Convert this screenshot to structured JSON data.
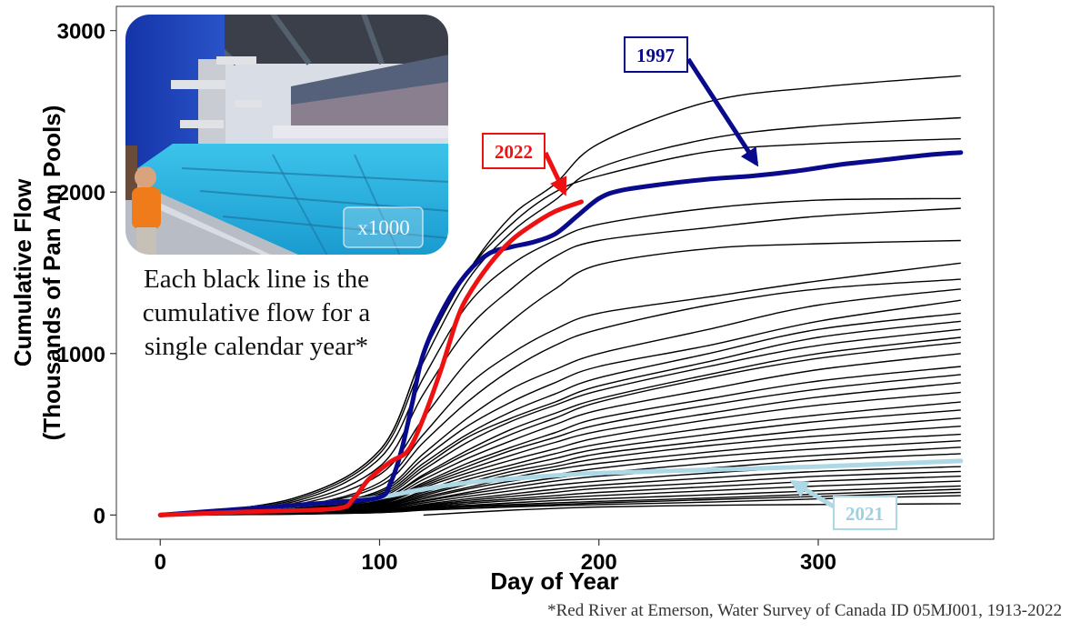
{
  "chart_data": {
    "type": "line",
    "xlabel": "Day of Year",
    "ylabel": [
      "Cumulative Flow",
      "(Thousands of Pan Am Pools)"
    ],
    "xlim": [
      -20,
      380
    ],
    "ylim": [
      -150,
      3150
    ],
    "xticks": [
      0,
      100,
      200,
      300
    ],
    "yticks": [
      0,
      1000,
      2000,
      3000
    ],
    "grid": false,
    "annotation": [
      "Each black line is the",
      "cumulative flow for a",
      "single calendar year*"
    ],
    "photo_label": "x1000",
    "footnote": "*Red River at Emerson, Water Survey of Canada ID 05MJ001, 1913-2022",
    "colors": {
      "background_years": "#000000",
      "y1997": "#0a0a8c",
      "y2022": "#ee1111",
      "y2021": "#add8e6"
    },
    "highlighted": [
      {
        "name": "1997",
        "color": "#0a0a8c",
        "x": [
          0,
          40,
          80,
          100,
          105,
          110,
          115,
          120,
          130,
          140,
          150,
          160,
          170,
          180,
          190,
          200,
          210,
          230,
          250,
          270,
          290,
          310,
          330,
          350,
          365
        ],
        "y": [
          0,
          40,
          80,
          110,
          200,
          400,
          700,
          1000,
          1300,
          1500,
          1620,
          1660,
          1690,
          1740,
          1850,
          1960,
          2010,
          2050,
          2080,
          2100,
          2130,
          2170,
          2200,
          2230,
          2245
        ]
      },
      {
        "name": "2022",
        "color": "#ee1111",
        "x": [
          0,
          40,
          80,
          88,
          95,
          105,
          113,
          120,
          128,
          135,
          140,
          150,
          160,
          170,
          180,
          192
        ],
        "y": [
          0,
          20,
          40,
          100,
          220,
          330,
          400,
          600,
          900,
          1200,
          1350,
          1550,
          1700,
          1800,
          1880,
          1940
        ]
      },
      {
        "name": "2021",
        "color": "#add8e6",
        "x": [
          0,
          40,
          80,
          100,
          120,
          140,
          160,
          180,
          200,
          250,
          300,
          365
        ],
        "y": [
          0,
          40,
          80,
          110,
          160,
          200,
          225,
          245,
          260,
          280,
          300,
          335
        ]
      }
    ],
    "background_years": [
      {
        "x": [
          0,
          60,
          100,
          120,
          140,
          160,
          180,
          200,
          250,
          300,
          365
        ],
        "y": [
          0,
          100,
          400,
          1000,
          1500,
          1800,
          2000,
          2100,
          2250,
          2300,
          2330
        ]
      },
      {
        "x": [
          0,
          60,
          100,
          120,
          140,
          160,
          180,
          200,
          250,
          300,
          365
        ],
        "y": [
          0,
          100,
          400,
          1000,
          1500,
          1850,
          2050,
          2300,
          2560,
          2650,
          2720
        ]
      },
      {
        "x": [
          0,
          60,
          100,
          120,
          140,
          160,
          180,
          200,
          250,
          300,
          365
        ],
        "y": [
          0,
          90,
          380,
          950,
          1450,
          1750,
          1950,
          2150,
          2330,
          2410,
          2460
        ]
      },
      {
        "x": [
          0,
          60,
          100,
          120,
          140,
          160,
          180,
          200,
          250,
          300,
          365
        ],
        "y": [
          0,
          80,
          350,
          850,
          1300,
          1550,
          1700,
          1800,
          1900,
          1950,
          1960
        ]
      },
      {
        "x": [
          0,
          60,
          100,
          120,
          140,
          160,
          180,
          200,
          250,
          300,
          365
        ],
        "y": [
          0,
          70,
          300,
          750,
          1150,
          1400,
          1600,
          1700,
          1780,
          1850,
          1900
        ]
      },
      {
        "x": [
          0,
          60,
          100,
          120,
          140,
          160,
          180,
          200,
          250,
          300,
          365
        ],
        "y": [
          0,
          60,
          250,
          600,
          950,
          1200,
          1400,
          1550,
          1650,
          1680,
          1700
        ]
      },
      {
        "x": [
          0,
          60,
          100,
          120,
          140,
          160,
          180,
          200,
          250,
          300,
          365
        ],
        "y": [
          0,
          50,
          200,
          500,
          800,
          1000,
          1150,
          1250,
          1350,
          1450,
          1560
        ]
      },
      {
        "x": [
          0,
          60,
          100,
          120,
          140,
          160,
          180,
          200,
          250,
          300,
          365
        ],
        "y": [
          0,
          50,
          180,
          450,
          700,
          900,
          1050,
          1150,
          1300,
          1400,
          1460
        ]
      },
      {
        "x": [
          0,
          60,
          100,
          120,
          140,
          160,
          180,
          200,
          250,
          300,
          365
        ],
        "y": [
          0,
          40,
          150,
          380,
          600,
          780,
          900,
          1000,
          1150,
          1300,
          1400
        ]
      },
      {
        "x": [
          0,
          60,
          100,
          120,
          140,
          160,
          180,
          200,
          250,
          300,
          365
        ],
        "y": [
          0,
          40,
          140,
          350,
          550,
          700,
          820,
          920,
          1050,
          1200,
          1330
        ]
      },
      {
        "x": [
          0,
          60,
          100,
          120,
          140,
          160,
          180,
          200,
          250,
          300,
          365
        ],
        "y": [
          0,
          35,
          130,
          320,
          500,
          640,
          750,
          850,
          1000,
          1150,
          1250
        ]
      },
      {
        "x": [
          0,
          60,
          100,
          120,
          140,
          160,
          180,
          200,
          250,
          300,
          365
        ],
        "y": [
          0,
          35,
          120,
          300,
          480,
          600,
          700,
          800,
          950,
          1100,
          1200
        ]
      },
      {
        "x": [
          0,
          60,
          100,
          120,
          140,
          160,
          180,
          200,
          250,
          300,
          365
        ],
        "y": [
          0,
          30,
          110,
          280,
          450,
          580,
          680,
          770,
          920,
          1050,
          1150
        ]
      },
      {
        "x": [
          0,
          60,
          100,
          120,
          140,
          160,
          180,
          200,
          250,
          300,
          365
        ],
        "y": [
          0,
          30,
          100,
          250,
          400,
          530,
          630,
          720,
          870,
          1000,
          1100
        ]
      },
      {
        "x": [
          0,
          60,
          100,
          120,
          140,
          160,
          180,
          200,
          250,
          300,
          365
        ],
        "y": [
          0,
          30,
          100,
          240,
          380,
          500,
          600,
          700,
          850,
          970,
          1070
        ]
      },
      {
        "x": [
          0,
          60,
          100,
          120,
          140,
          160,
          180,
          200,
          250,
          300,
          365
        ],
        "y": [
          0,
          25,
          90,
          220,
          350,
          460,
          560,
          650,
          780,
          900,
          1000
        ]
      },
      {
        "x": [
          0,
          60,
          100,
          120,
          140,
          160,
          180,
          200,
          250,
          300,
          365
        ],
        "y": [
          0,
          25,
          85,
          200,
          320,
          420,
          510,
          600,
          720,
          830,
          920
        ]
      },
      {
        "x": [
          0,
          60,
          100,
          120,
          140,
          160,
          180,
          200,
          250,
          300,
          365
        ],
        "y": [
          0,
          25,
          80,
          190,
          300,
          400,
          480,
          560,
          680,
          780,
          870
        ]
      },
      {
        "x": [
          0,
          60,
          100,
          120,
          140,
          160,
          180,
          200,
          250,
          300,
          365
        ],
        "y": [
          0,
          20,
          75,
          180,
          280,
          370,
          450,
          520,
          630,
          730,
          820
        ]
      },
      {
        "x": [
          0,
          60,
          100,
          120,
          140,
          160,
          180,
          200,
          250,
          300,
          365
        ],
        "y": [
          0,
          20,
          70,
          170,
          260,
          340,
          410,
          480,
          590,
          680,
          760
        ]
      },
      {
        "x": [
          0,
          60,
          100,
          120,
          140,
          160,
          180,
          200,
          250,
          300,
          365
        ],
        "y": [
          0,
          20,
          65,
          150,
          240,
          310,
          380,
          440,
          540,
          620,
          700
        ]
      },
      {
        "x": [
          0,
          60,
          100,
          120,
          140,
          160,
          180,
          200,
          250,
          300,
          365
        ],
        "y": [
          0,
          18,
          60,
          140,
          220,
          290,
          350,
          410,
          500,
          580,
          650
        ]
      },
      {
        "x": [
          0,
          60,
          100,
          120,
          140,
          160,
          180,
          200,
          250,
          300,
          365
        ],
        "y": [
          0,
          18,
          55,
          130,
          200,
          270,
          320,
          380,
          460,
          530,
          600
        ]
      },
      {
        "x": [
          0,
          60,
          100,
          120,
          140,
          160,
          180,
          200,
          250,
          300,
          365
        ],
        "y": [
          0,
          15,
          50,
          120,
          190,
          250,
          300,
          350,
          430,
          490,
          550
        ]
      },
      {
        "x": [
          0,
          60,
          100,
          120,
          140,
          160,
          180,
          200,
          250,
          300,
          365
        ],
        "y": [
          0,
          15,
          50,
          110,
          170,
          230,
          280,
          320,
          390,
          450,
          500
        ]
      },
      {
        "x": [
          0,
          60,
          100,
          120,
          140,
          160,
          180,
          200,
          250,
          300,
          365
        ],
        "y": [
          0,
          15,
          45,
          100,
          160,
          210,
          250,
          290,
          360,
          410,
          460
        ]
      },
      {
        "x": [
          0,
          60,
          100,
          120,
          140,
          160,
          180,
          200,
          250,
          300,
          365
        ],
        "y": [
          0,
          12,
          40,
          90,
          140,
          190,
          230,
          260,
          320,
          370,
          420
        ]
      },
      {
        "x": [
          0,
          60,
          100,
          120,
          140,
          160,
          180,
          200,
          250,
          300,
          365
        ],
        "y": [
          0,
          12,
          40,
          85,
          130,
          170,
          210,
          240,
          290,
          340,
          380
        ]
      },
      {
        "x": [
          0,
          60,
          100,
          120,
          140,
          160,
          180,
          200,
          250,
          300,
          365
        ],
        "y": [
          0,
          10,
          35,
          75,
          115,
          150,
          185,
          210,
          260,
          300,
          340
        ]
      },
      {
        "x": [
          0,
          60,
          100,
          120,
          140,
          160,
          180,
          200,
          250,
          300,
          365
        ],
        "y": [
          0,
          10,
          30,
          65,
          100,
          130,
          160,
          185,
          230,
          270,
          300
        ]
      },
      {
        "x": [
          0,
          60,
          100,
          120,
          140,
          160,
          180,
          200,
          250,
          300,
          365
        ],
        "y": [
          0,
          10,
          30,
          60,
          90,
          115,
          140,
          165,
          200,
          240,
          270
        ]
      },
      {
        "x": [
          0,
          60,
          100,
          120,
          140,
          160,
          180,
          200,
          250,
          300,
          365
        ],
        "y": [
          0,
          8,
          25,
          55,
          80,
          100,
          120,
          140,
          175,
          210,
          240
        ]
      },
      {
        "x": [
          0,
          60,
          100,
          120,
          140,
          160,
          180,
          200,
          250,
          300,
          365
        ],
        "y": [
          0,
          8,
          25,
          50,
          70,
          90,
          105,
          120,
          150,
          180,
          210
        ]
      },
      {
        "x": [
          0,
          60,
          100,
          120,
          140,
          160,
          180,
          200,
          250,
          300,
          365
        ],
        "y": [
          0,
          8,
          20,
          45,
          60,
          75,
          90,
          100,
          125,
          150,
          180
        ]
      },
      {
        "x": [
          0,
          60,
          100,
          120,
          140,
          160,
          180,
          200,
          250,
          300,
          365
        ],
        "y": [
          0,
          6,
          18,
          40,
          55,
          65,
          75,
          85,
          105,
          130,
          160
        ]
      },
      {
        "x": [
          0,
          60,
          100,
          120,
          140,
          160,
          180,
          200,
          250,
          300,
          365
        ],
        "y": [
          0,
          6,
          15,
          35,
          48,
          58,
          65,
          75,
          95,
          115,
          140
        ]
      },
      {
        "x": [
          0,
          60,
          100,
          120,
          140,
          160,
          180,
          200,
          250,
          300,
          365
        ],
        "y": [
          0,
          5,
          15,
          30,
          40,
          50,
          58,
          65,
          80,
          100,
          120
        ]
      },
      {
        "x": [
          120,
          160,
          200,
          250,
          300,
          365
        ],
        "y": [
          0,
          30,
          50,
          60,
          65,
          70
        ]
      }
    ]
  },
  "callouts": {
    "c1997": {
      "label": "1997"
    },
    "c2022": {
      "label": "2022"
    },
    "c2021": {
      "label": "2021"
    }
  }
}
